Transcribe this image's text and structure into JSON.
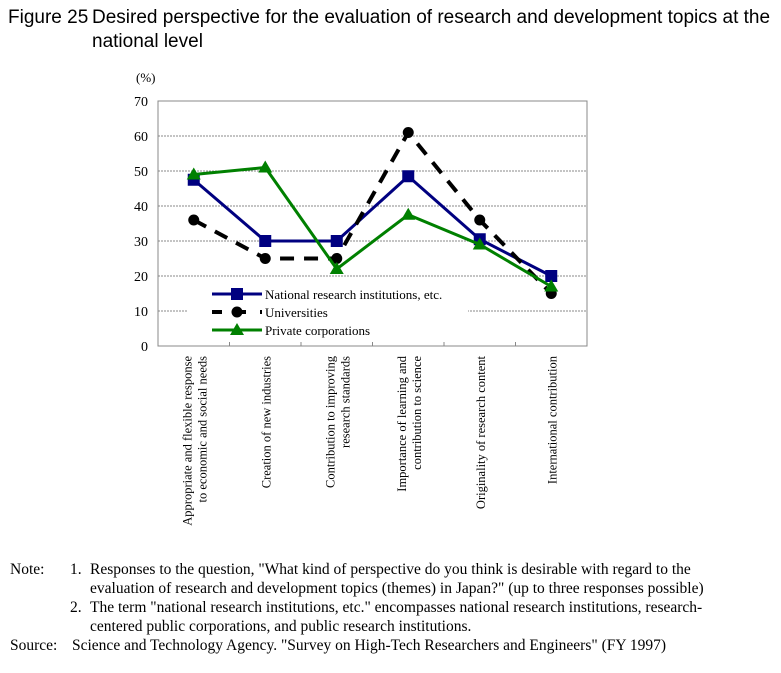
{
  "figure": {
    "number": "Figure 25",
    "title": "Desired perspective for the evaluation of research and development topics at the national level"
  },
  "chart_data": {
    "type": "line",
    "title": "Desired perspective for the evaluation of research and development topics at the national level",
    "ylabel": "(%)",
    "ylim": [
      0,
      70
    ],
    "yticks": [
      0,
      10,
      20,
      30,
      40,
      50,
      60,
      70
    ],
    "grid": true,
    "legend_position": "bottom-left",
    "categories": [
      [
        "Appropriate and flexible response",
        "to economic and social needs"
      ],
      [
        "Creation of new industries"
      ],
      [
        "Contribution to improving",
        "research standards"
      ],
      [
        "Importance of learning and",
        "contribution to science"
      ],
      [
        "Originality of research content"
      ],
      [
        "International contribution"
      ]
    ],
    "series": [
      {
        "name": "National research institutions, etc.",
        "color": "#000080",
        "marker": "square",
        "dash": false,
        "values": [
          47.5,
          30,
          30,
          48.5,
          30.5,
          20
        ]
      },
      {
        "name": "Universities",
        "color": "#000000",
        "marker": "circle",
        "dash": true,
        "values": [
          36,
          25,
          25,
          61,
          36,
          15
        ]
      },
      {
        "name": "Private corporations",
        "color": "#008000",
        "marker": "triangle",
        "dash": false,
        "values": [
          49,
          51,
          22,
          37.5,
          29,
          17
        ]
      }
    ]
  },
  "notes": {
    "note_label": "Note:",
    "items": [
      {
        "num": "1.",
        "lines": [
          "Responses to the question, \"What kind of perspective do you think is desirable with regard to the",
          "evaluation of research and development topics (themes) in Japan?\" (up to three responses possible)"
        ]
      },
      {
        "num": "2.",
        "lines": [
          "The term \"national research institutions, etc.\" encompasses national research institutions, research-",
          "centered public corporations, and public research institutions."
        ]
      }
    ],
    "source_label": "Source:",
    "source": "Science and Technology Agency. \"Survey on High-Tech Researchers and Engineers\" (FY 1997)"
  }
}
